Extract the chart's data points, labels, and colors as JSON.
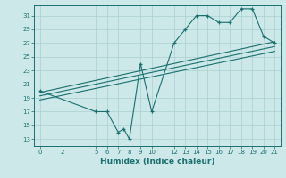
{
  "bg_color": "#cce8e8",
  "grid_color": "#aacfcf",
  "line_color": "#1a7070",
  "xlabel": "Humidex (Indice chaleur)",
  "xlim": [
    -0.5,
    21.5
  ],
  "ylim": [
    12,
    32.5
  ],
  "xticks": [
    0,
    2,
    5,
    6,
    7,
    8,
    9,
    10,
    12,
    13,
    14,
    15,
    16,
    17,
    18,
    19,
    20,
    21
  ],
  "yticks": [
    13,
    15,
    17,
    19,
    21,
    23,
    25,
    27,
    29,
    31
  ],
  "main_line": {
    "x": [
      0,
      5,
      6,
      7,
      7.5,
      8,
      9,
      10,
      12,
      13,
      14,
      15,
      16,
      17,
      18,
      19,
      20,
      21
    ],
    "y": [
      20,
      17,
      17,
      14,
      14.5,
      13,
      24,
      17,
      27,
      29,
      31,
      31,
      30,
      30,
      32,
      32,
      28,
      27
    ]
  },
  "line2": {
    "x": [
      0,
      21
    ],
    "y": [
      19.8,
      27.2
    ]
  },
  "line3": {
    "x": [
      0,
      21
    ],
    "y": [
      19.3,
      26.5
    ]
  },
  "line4": {
    "x": [
      0,
      21
    ],
    "y": [
      18.7,
      25.8
    ]
  }
}
